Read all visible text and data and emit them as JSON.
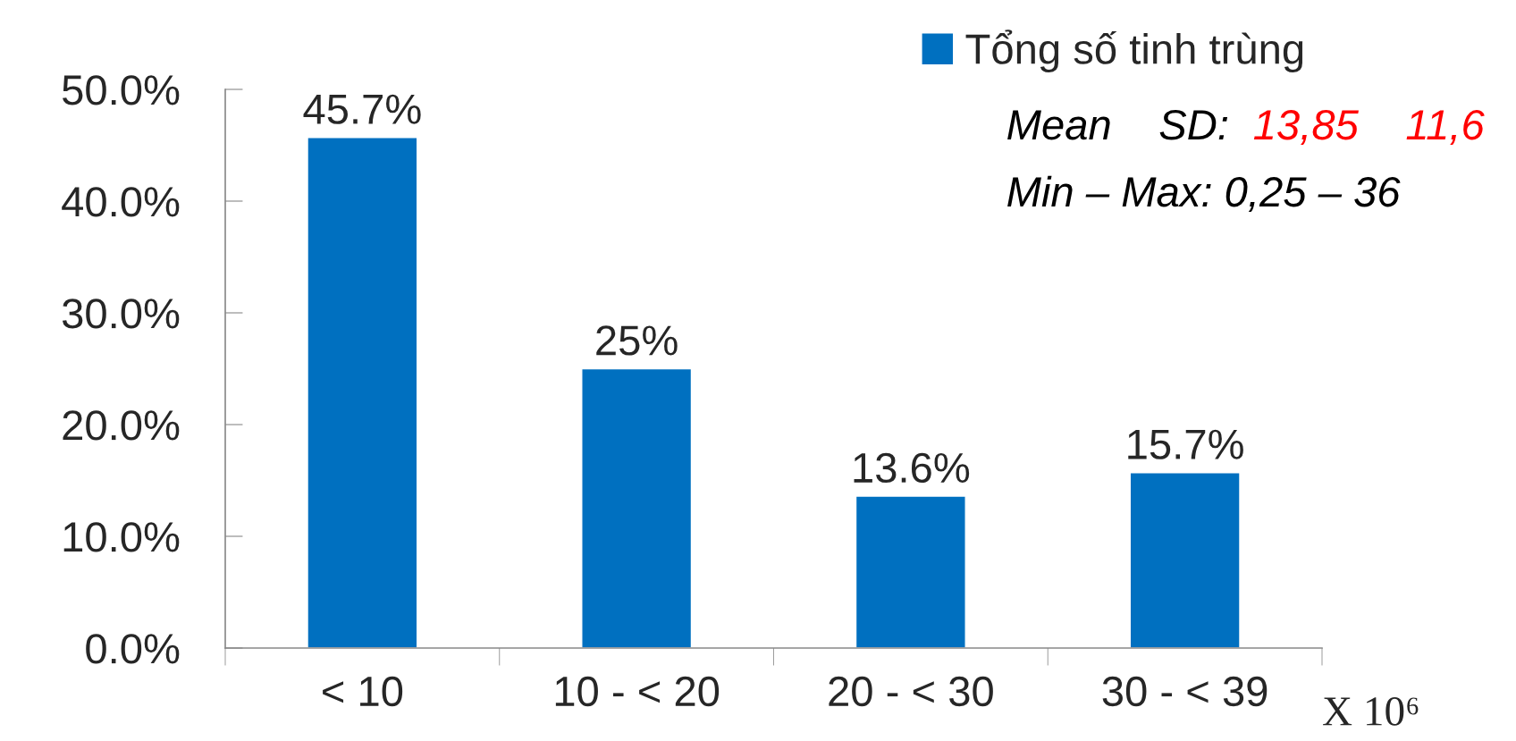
{
  "chart_data": {
    "type": "bar",
    "categories": [
      "< 10",
      "10 - < 20",
      "20 - < 30",
      "30 - < 39"
    ],
    "series": [
      {
        "name": "Tổng số tinh trùng",
        "color": "#0070c0",
        "values": [
          45.7,
          25,
          13.6,
          15.7
        ],
        "value_labels": [
          "45.7%",
          "25%",
          "13.6%",
          "15.7%"
        ]
      }
    ],
    "xlabel": "X 10⁶",
    "ylim": [
      0,
      50
    ],
    "yticks": [
      {
        "value": 0,
        "label": "0.0%"
      },
      {
        "value": 10,
        "label": "10.0%"
      },
      {
        "value": 20,
        "label": "20.0%"
      },
      {
        "value": 30,
        "label": "30.0%"
      },
      {
        "value": 40,
        "label": "40.0%"
      },
      {
        "value": 50,
        "label": "50.0%"
      }
    ],
    "annotations": [
      "Mean    SD:",
      "13,85    11,6",
      "Min – Max: 0,25 – 36"
    ],
    "legend": "top right",
    "grid": false
  }
}
